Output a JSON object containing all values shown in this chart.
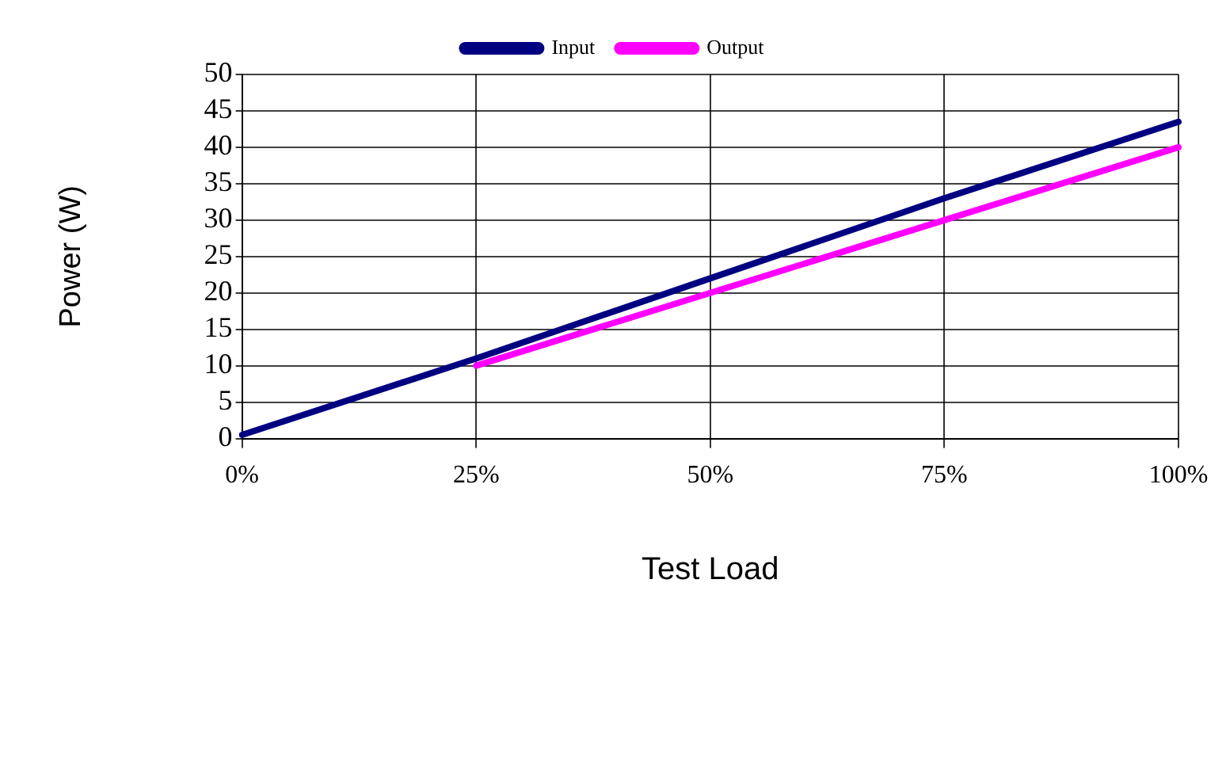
{
  "chart_data": {
    "type": "line",
    "xlabel": "Test Load",
    "ylabel": "Power (W)",
    "categories": [
      "0%",
      "25%",
      "50%",
      "75%",
      "100%"
    ],
    "series": [
      {
        "name": "Input",
        "color": "#000080",
        "values": [
          0.5,
          11,
          22,
          33,
          43.5
        ]
      },
      {
        "name": "Output",
        "color": "#ff00ff",
        "values": [
          null,
          10,
          20,
          30,
          40
        ]
      }
    ],
    "ylim": [
      0,
      50
    ],
    "yticks": [
      0,
      5,
      10,
      15,
      20,
      25,
      30,
      35,
      40,
      45,
      50
    ],
    "grid": true,
    "legend": "top",
    "marker": "none",
    "line_style": "solid"
  }
}
